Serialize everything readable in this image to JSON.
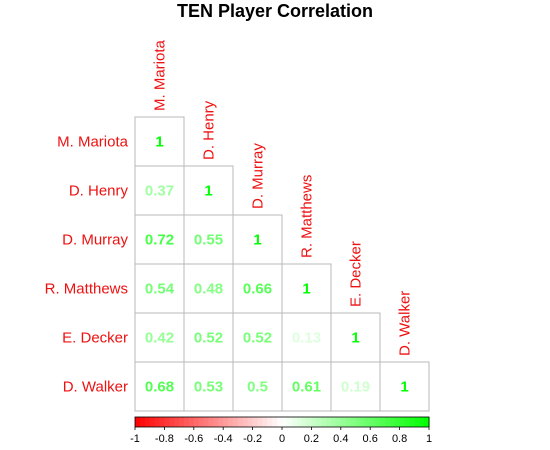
{
  "chart_data": {
    "type": "heatmap",
    "title": "TEN Player Correlation",
    "rows": [
      "M. Mariota",
      "D. Henry",
      "D. Murray",
      "R. Matthews",
      "E. Decker",
      "D. Walker"
    ],
    "columns": [
      "M. Mariota",
      "D. Henry",
      "D. Murray",
      "R. Matthews",
      "E. Decker",
      "D. Walker"
    ],
    "matrix": [
      [
        1
      ],
      [
        0.37,
        1
      ],
      [
        0.72,
        0.55,
        1
      ],
      [
        0.54,
        0.48,
        0.66,
        1
      ],
      [
        0.42,
        0.52,
        0.52,
        0.13,
        1
      ],
      [
        0.68,
        0.53,
        0.5,
        0.61,
        0.19,
        1
      ]
    ],
    "value_labels": [
      [
        "1"
      ],
      [
        "0.37",
        "1"
      ],
      [
        "0.72",
        "0.55",
        "1"
      ],
      [
        "0.54",
        "0.48",
        "0.66",
        "1"
      ],
      [
        "0.42",
        "0.52",
        "0.52",
        "0.13",
        "1"
      ],
      [
        "0.68",
        "0.53",
        "0.5",
        "0.61",
        "0.19",
        "1"
      ]
    ],
    "colorbar": {
      "range": [
        -1,
        1
      ],
      "ticks": [
        "-1",
        "-0.8",
        "-0.6",
        "-0.4",
        "-0.2",
        "0",
        "0.2",
        "0.4",
        "0.6",
        "0.8",
        "1"
      ]
    },
    "colors": {
      "negative": "#ff0000",
      "neutral": "#ffffff",
      "positive": "#00ff00",
      "labels": "#ee1111",
      "grid": "#b8b8b8"
    }
  }
}
